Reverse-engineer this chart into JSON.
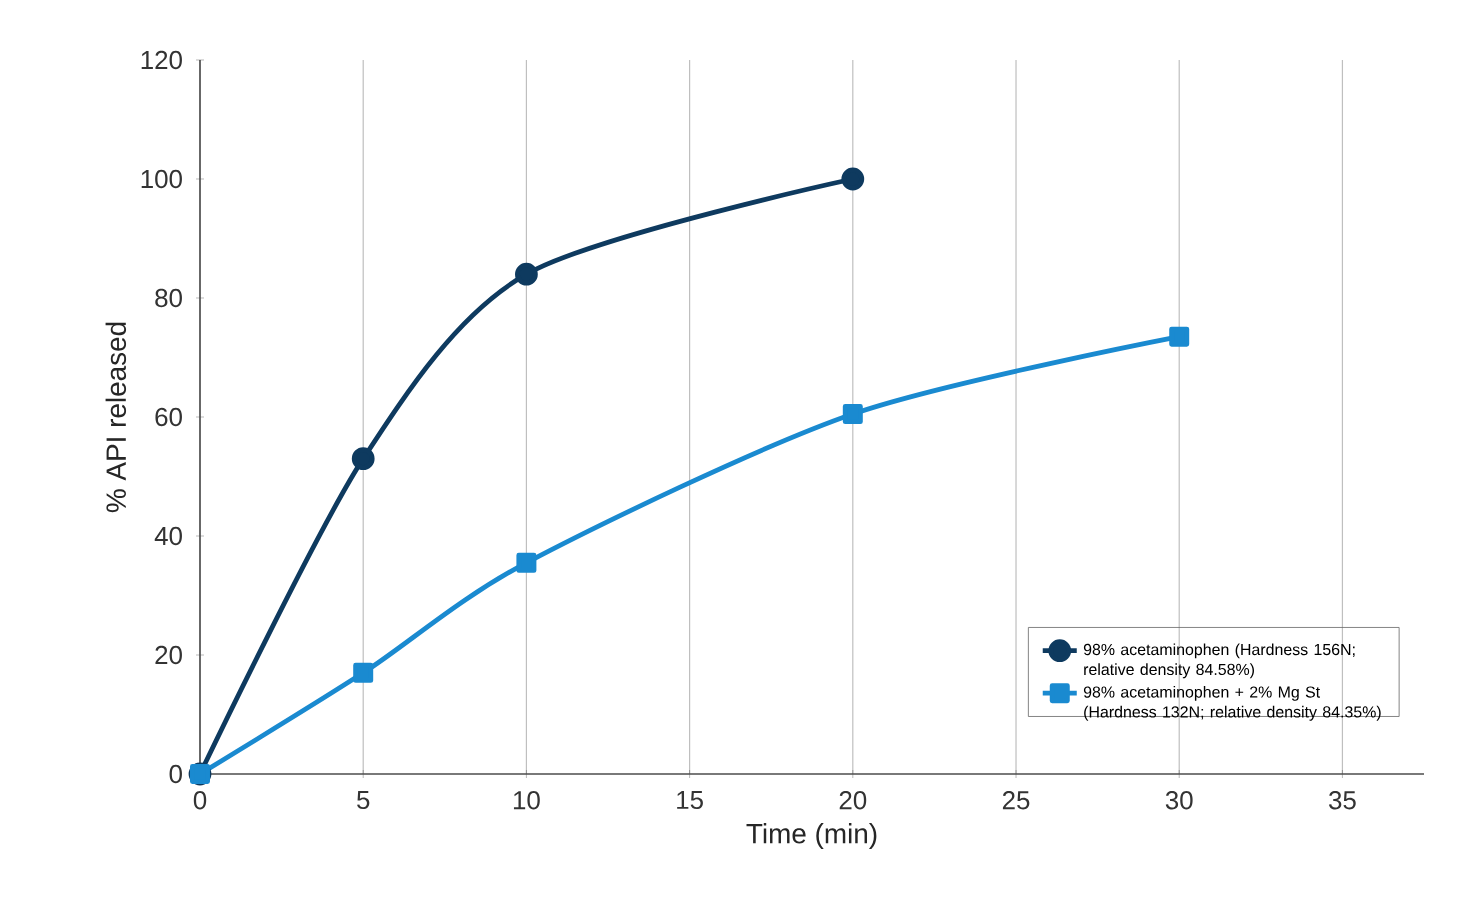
{
  "chart_data": {
    "type": "line",
    "xlabel": "Time (min)",
    "ylabel": "% API released",
    "series": [
      {
        "name": "98% acetaminophen (Hardness 156N; relative density 84.58%)",
        "color": "#0e3a5f",
        "x": [
          0,
          5,
          10,
          20
        ],
        "values": [
          0,
          53,
          84,
          100
        ],
        "marker": "circle"
      },
      {
        "name": "98% acetaminophen + 2% Mg St (Hardness 132N; relative density 84.35%)",
        "color": "#1a8ad0",
        "x": [
          0,
          5,
          10,
          20,
          30
        ],
        "values": [
          0,
          17,
          35.5,
          60.5,
          73.5
        ],
        "marker": "square"
      }
    ],
    "xlim": [
      0,
      37.5
    ],
    "xticks": [
      0,
      5,
      10,
      15,
      20,
      25,
      30,
      35
    ],
    "ylim": [
      0,
      120
    ],
    "yticks": [
      0,
      20,
      40,
      60,
      80,
      100,
      120
    ],
    "grid": "x",
    "legend": "bottom right",
    "line_style": "solid"
  }
}
